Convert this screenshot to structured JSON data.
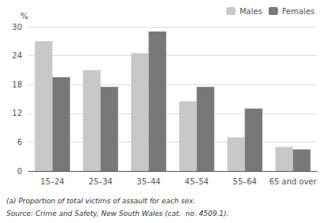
{
  "chart_data": {
    "type": "bar",
    "ylabel": "%",
    "categories": [
      "15–24",
      "25–34",
      "35–44",
      "45–54",
      "55–64",
      "65 and over"
    ],
    "series": [
      {
        "name": "Males",
        "color": "#c8c8c8",
        "values": [
          27.0,
          21.0,
          24.5,
          14.5,
          7.0,
          5.0
        ]
      },
      {
        "name": "Females",
        "color": "#787878",
        "values": [
          19.5,
          17.5,
          29.0,
          17.5,
          13.0,
          4.5
        ]
      }
    ],
    "ylim": [
      0,
      30
    ],
    "yticks": [
      0,
      6,
      12,
      18,
      24,
      30
    ],
    "grid": true,
    "legend": "upper right",
    "annotations": [
      "(a) Proportion of total victims of assault for each sex.",
      "Source: Crime and Safety, New South Wales (cat.  no. 4509.1)."
    ]
  }
}
